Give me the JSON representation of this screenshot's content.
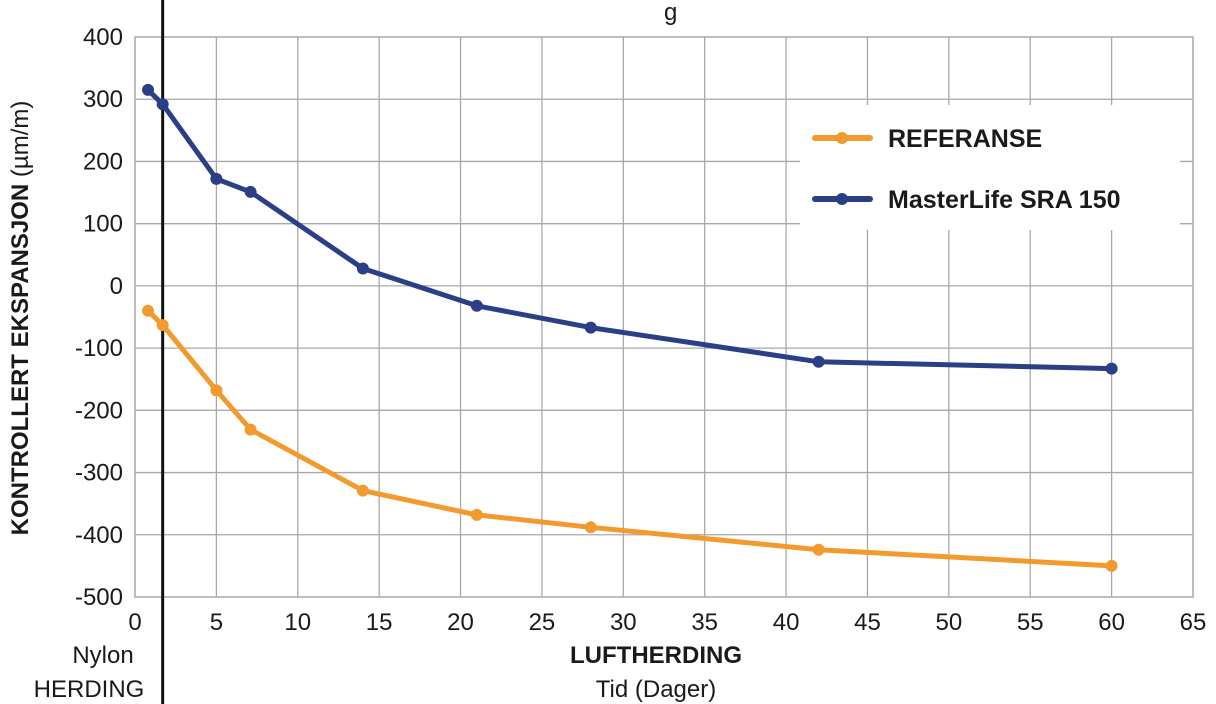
{
  "chart_data": {
    "type": "line",
    "title": "g",
    "xlabel": "LUFTHERDING",
    "xlabel_sub": "Tid (Dager)",
    "ylabel_bold": "KONTROLLERT EKSPANSJON",
    "ylabel_unit": " (µm/m)",
    "left_note_line1": "Nylon",
    "left_note_line2": "HERDING",
    "xlim": [
      0,
      65
    ],
    "ylim": [
      -500,
      400
    ],
    "x_ticks": [
      "0",
      "5",
      "10",
      "15",
      "20",
      "25",
      "30",
      "35",
      "40",
      "45",
      "50",
      "55",
      "60",
      "65"
    ],
    "y_ticks": [
      "400",
      "300",
      "200",
      "100",
      "0",
      "-100",
      "-200",
      "-300",
      "-400",
      "-500"
    ],
    "grid": true,
    "legend_position": "top-right",
    "divider_x": 1.7,
    "series": [
      {
        "name": "REFERANSE",
        "color": "#f39a2e",
        "x": [
          0.8,
          1.7,
          5,
          7.1,
          14,
          21,
          28,
          42,
          60
        ],
        "y": [
          -40,
          -63,
          -168,
          -231,
          -329,
          -368,
          -388,
          -424,
          -450
        ]
      },
      {
        "name": "MasterLife SRA 150",
        "color": "#2b3f86",
        "x": [
          0.8,
          1.7,
          5,
          7.1,
          14,
          21,
          28,
          42,
          60
        ],
        "y": [
          315,
          292,
          172,
          151,
          28,
          -32,
          -67,
          -122,
          -133
        ]
      }
    ]
  }
}
